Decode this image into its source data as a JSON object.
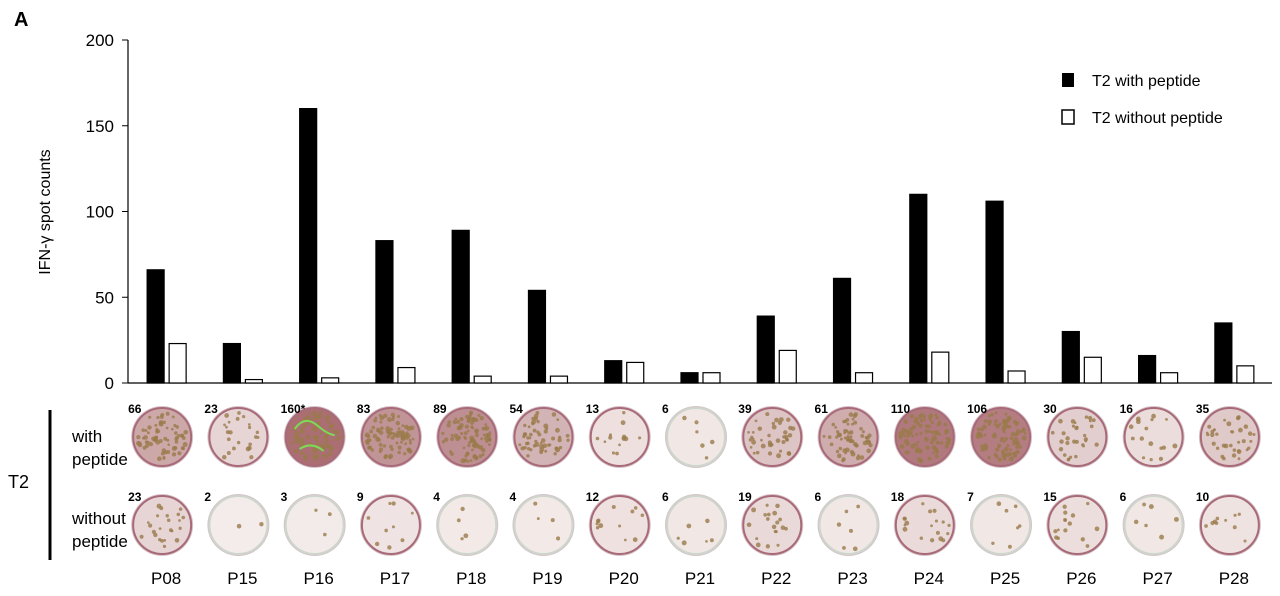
{
  "panel_label": "A",
  "chart_data": {
    "type": "bar",
    "ylabel": "IFN-γ spot counts",
    "ylim": [
      0,
      200
    ],
    "yticks": [
      0,
      50,
      100,
      150,
      200
    ],
    "categories": [
      "P08",
      "P15",
      "P16",
      "P17",
      "P18",
      "P19",
      "P20",
      "P21",
      "P22",
      "P23",
      "P24",
      "P25",
      "P26",
      "P27",
      "P28"
    ],
    "series": [
      {
        "name": "T2 with peptide",
        "color": "#000000",
        "values": [
          66,
          23,
          160,
          83,
          89,
          54,
          13,
          6,
          39,
          61,
          110,
          106,
          30,
          16,
          35
        ]
      },
      {
        "name": "T2 without peptide",
        "color": "#ffffff",
        "values": [
          23,
          2,
          3,
          9,
          4,
          4,
          12,
          6,
          19,
          6,
          18,
          7,
          15,
          6,
          10
        ]
      }
    ],
    "legend": "top-right",
    "grid": false
  },
  "wells": {
    "group_label": "T2",
    "row_labels": [
      [
        "with",
        "peptide"
      ],
      [
        "without",
        "peptide"
      ]
    ],
    "with_labels": [
      "66",
      "23",
      "160*",
      "83",
      "89",
      "54",
      "13",
      "6",
      "39",
      "61",
      "110",
      "106",
      "30",
      "16",
      "35"
    ],
    "without_labels": [
      "23",
      "2",
      "3",
      "9",
      "4",
      "4",
      "12",
      "6",
      "19",
      "6",
      "18",
      "7",
      "15",
      "6",
      "10"
    ]
  }
}
